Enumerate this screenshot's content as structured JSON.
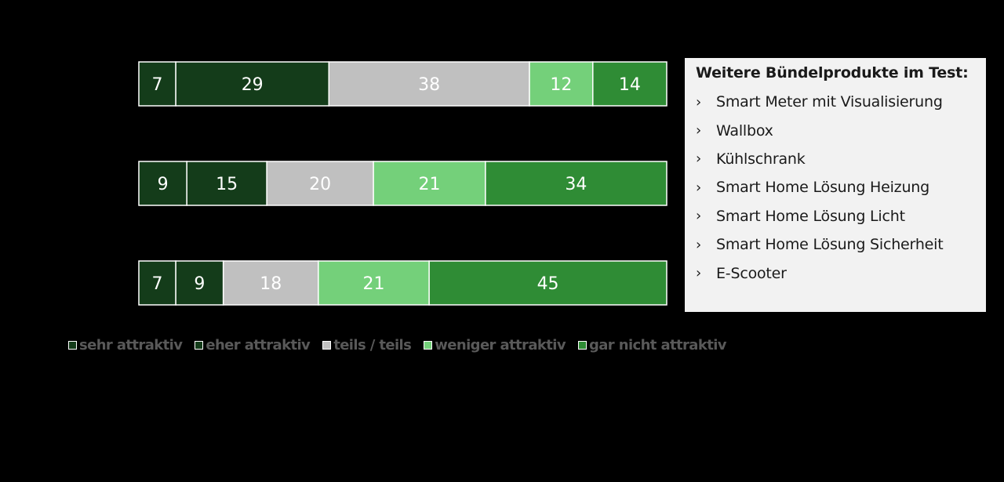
{
  "colors": {
    "background": "#000000",
    "sehr_attraktiv": "#143c1a",
    "eher_attraktiv": "#143c1a",
    "teils_teils": "#c0c0c0",
    "weniger_attraktiv": "#74d07a",
    "gar_nicht_attraktiv": "#2f8c35",
    "segment_border": "#ffffff",
    "legend_text": "#595959",
    "infobox_bg": "#f2f2f2"
  },
  "chart_data": {
    "type": "bar",
    "orientation": "horizontal",
    "stacked": true,
    "categories": [
      "",
      "",
      ""
    ],
    "series": [
      {
        "name": "sehr attraktiv",
        "values": [
          7,
          9,
          7
        ],
        "color": "#143c1a"
      },
      {
        "name": "eher attraktiv",
        "values": [
          29,
          15,
          9
        ],
        "color": "#143c1a"
      },
      {
        "name": "teils / teils",
        "values": [
          38,
          20,
          18
        ],
        "color": "#c0c0c0"
      },
      {
        "name": "weniger attraktiv",
        "values": [
          12,
          21,
          21
        ],
        "color": "#74d07a"
      },
      {
        "name": "gar nicht attraktiv",
        "values": [
          14,
          34,
          45
        ],
        "color": "#2f8c35"
      }
    ],
    "title": "",
    "xlabel": "",
    "ylabel": "",
    "xlim": [
      0,
      100
    ],
    "unit": "percent",
    "data_labels": true,
    "grid": false,
    "legend_position": "bottom-left"
  },
  "infobox": {
    "title": "Weitere Bündelprodukte im Test:",
    "bullet": "›",
    "items": [
      "Smart Meter mit Visualisierung",
      "Wallbox",
      "Kühlschrank",
      "Smart Home Lösung Heizung",
      "Smart Home Lösung Licht",
      "Smart Home Lösung Sicherheit",
      "E-Scooter"
    ]
  }
}
